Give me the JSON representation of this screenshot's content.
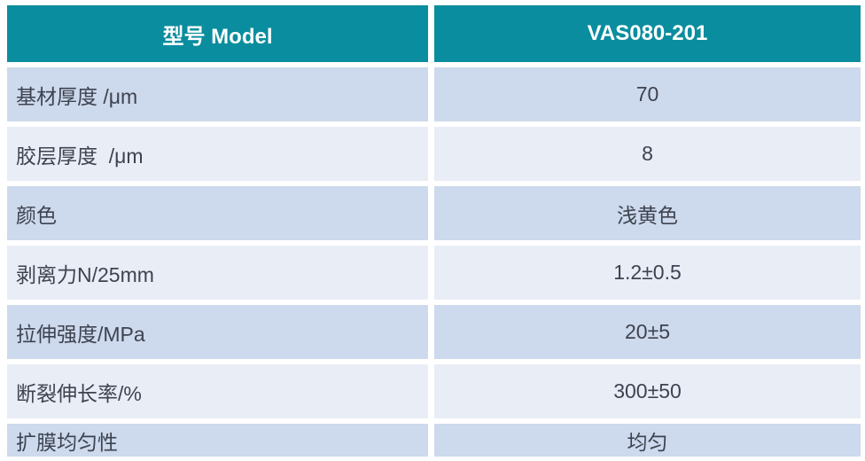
{
  "colors": {
    "accent": "#0a8d9f",
    "row_dark": "#cdd9ec",
    "row_light": "#e9edf6",
    "text": "#3d4350",
    "header_text": "#ffffff",
    "page_bg": "#ffffff"
  },
  "chart_data": {
    "type": "table",
    "title": "Product specification table",
    "columns": [
      "型号 Model",
      "VAS080-201"
    ],
    "rows": [
      [
        "基材厚度 /μm",
        "70"
      ],
      [
        "胶层厚度  /μm",
        "8"
      ],
      [
        "颜色",
        "浅黄色"
      ],
      [
        "剥离力N/25mm",
        "1.2±0.5"
      ],
      [
        "拉伸强度/MPa",
        "20±5"
      ],
      [
        "断裂伸长率/%",
        "300±50"
      ],
      [
        "扩膜均匀性",
        "均匀"
      ]
    ]
  },
  "table": {
    "header": {
      "model_label": "型号 Model",
      "model_value": "VAS080-201"
    },
    "rows": [
      {
        "label": "基材厚度 /μm",
        "value": "70"
      },
      {
        "label": "胶层厚度  /μm",
        "value": "8"
      },
      {
        "label": "颜色",
        "value": "浅黄色"
      },
      {
        "label": "剥离力N/25mm",
        "value": "1.2±0.5"
      },
      {
        "label": "拉伸强度/MPa",
        "value": "20±5"
      },
      {
        "label": "断裂伸长率/%",
        "value": "300±50"
      },
      {
        "label": "扩膜均匀性",
        "value": "均匀"
      }
    ]
  }
}
